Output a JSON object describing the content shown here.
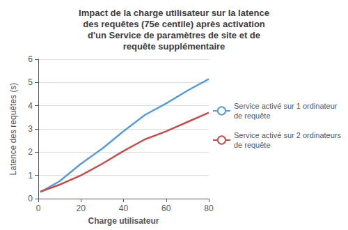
{
  "chart_data": {
    "type": "line",
    "title": "Impact de la charge utilisateur sur la latence\ndes requêtes (75e centile) après activation\nd'un Service de paramètres de site et de\nrequête supplémentaire",
    "xlabel": "Charge utilisateur",
    "ylabel": "Latence des requêtes (s)",
    "x": [
      1,
      10,
      20,
      30,
      40,
      50,
      60,
      70,
      80
    ],
    "series": [
      {
        "name": "Service activé sur 1 ordinateur\nde requête",
        "color": "#5b9bd5",
        "values": [
          0.28,
          0.75,
          1.5,
          2.15,
          2.9,
          3.6,
          4.1,
          4.65,
          5.15
        ]
      },
      {
        "name": "Service activé sur 2 ordinateurs\nde requête",
        "color": "#c0504d",
        "values": [
          0.3,
          0.6,
          1.0,
          1.5,
          2.05,
          2.55,
          2.9,
          3.3,
          3.7
        ]
      }
    ],
    "xlim": [
      0,
      80
    ],
    "ylim": [
      0,
      6
    ],
    "xticks": [
      0,
      20,
      40,
      60,
      80
    ],
    "yticks": [
      0,
      1,
      2,
      3,
      4,
      5,
      6
    ],
    "grid": "y",
    "legend": "right"
  }
}
